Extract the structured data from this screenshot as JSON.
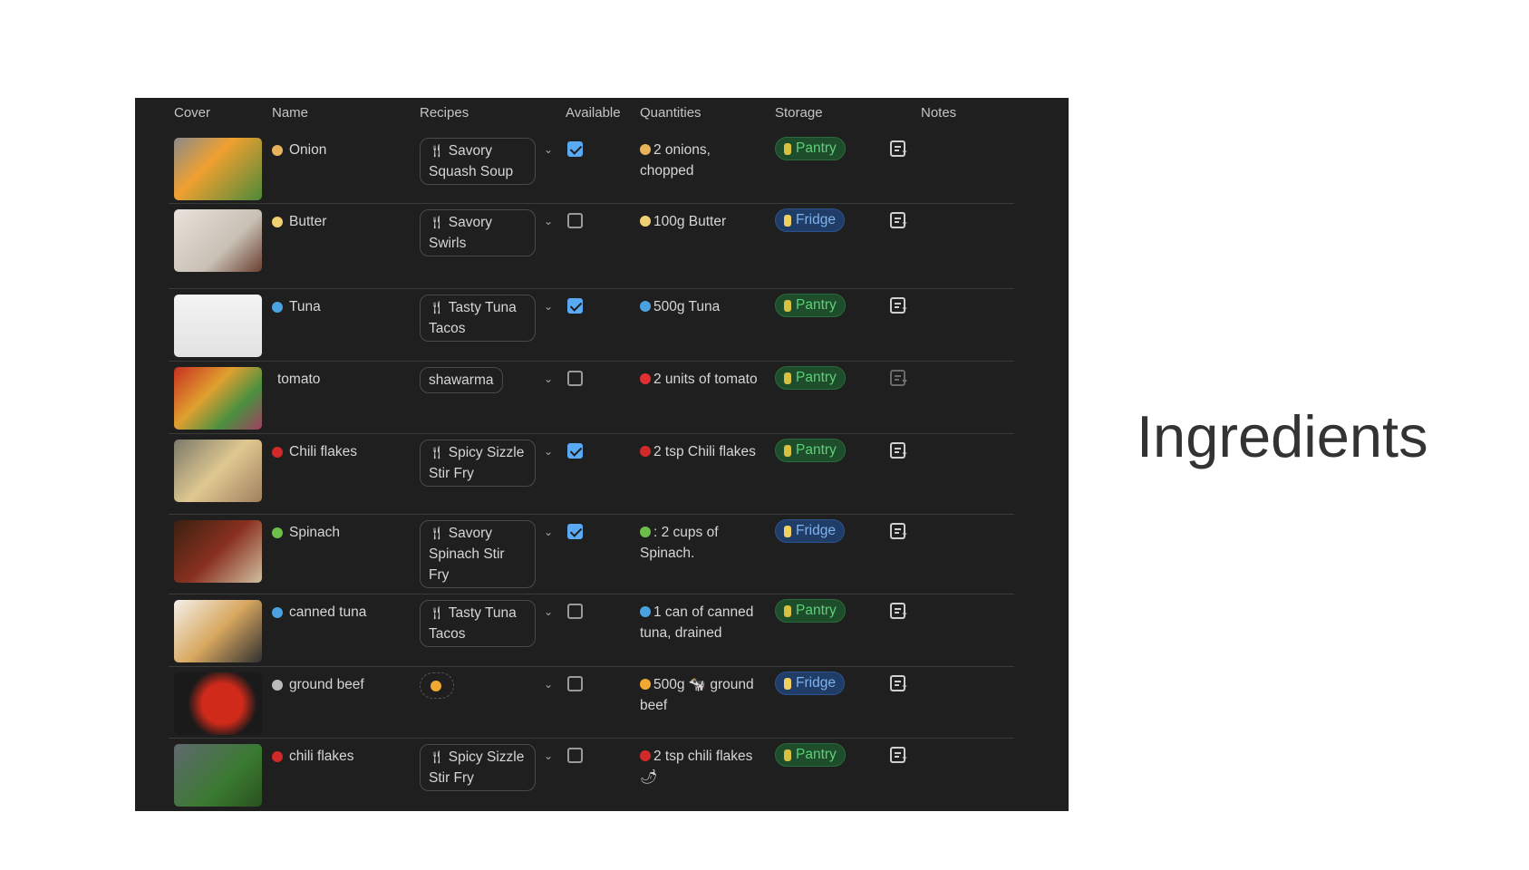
{
  "title": "Ingredients",
  "columns": [
    "Cover",
    "Name",
    "Recipes",
    "Available",
    "Quantities",
    "Storage",
    "Notes"
  ],
  "colors": {
    "panel": "#1f1f1f",
    "pantry": "#5fd07a",
    "fridge": "#7fb3f0",
    "checkbox": "#5aa9f5"
  },
  "rows": [
    {
      "name": "Onion",
      "name_icon": "onion-icon",
      "recipe": "Savory Squash Soup",
      "available": true,
      "quantity": "2 onions, chopped",
      "qty_icon": "onion-icon",
      "storage": "Pantry",
      "storage_icon": "can-icon",
      "thumb": "vegetables-photo"
    },
    {
      "name": "Butter",
      "name_icon": "butter-icon",
      "recipe": "Savory Swirls",
      "available": false,
      "quantity": "100g Butter",
      "qty_icon": "butter-icon",
      "storage": "Fridge",
      "storage_icon": "ice-cream-icon",
      "thumb": "dessert-photo"
    },
    {
      "name": "Tuna",
      "name_icon": "fish-icon",
      "recipe": "Tasty Tuna Tacos",
      "available": true,
      "quantity": "500g Tuna",
      "qty_icon": "fish-icon",
      "storage": "Pantry",
      "storage_icon": "can-icon",
      "thumb": "pineapple-photo"
    },
    {
      "name": "tomato",
      "name_icon": "",
      "recipe": "shawarma",
      "recipe_plain": true,
      "available": false,
      "quantity": "2 units of tomato",
      "qty_icon": "tomato-icon",
      "storage": "Pantry",
      "storage_icon": "can-icon",
      "thumb": "produce-photo",
      "note_dim": true
    },
    {
      "name": "Chili flakes",
      "name_icon": "chili-icon",
      "recipe": "Spicy Sizzle Stir Fry",
      "available": true,
      "quantity": "2 tsp Chili flakes",
      "qty_icon": "chili-icon",
      "storage": "Pantry",
      "storage_icon": "can-icon",
      "thumb": "spices-photo"
    },
    {
      "name": "Spinach",
      "name_icon": "herb-icon",
      "recipe": "Savory Spinach Stir Fry",
      "available": true,
      "quantity": ": 2 cups of Spinach.",
      "qty_icon": "herb-icon",
      "storage": "Fridge",
      "storage_icon": "ice-cream-icon",
      "thumb": "bowl-photo"
    },
    {
      "name": "canned tuna",
      "name_icon": "fish-icon",
      "recipe": "Tasty Tuna Tacos",
      "available": false,
      "quantity": "1 can of canned tuna, drained",
      "qty_icon": "fish-icon",
      "storage": "Pantry",
      "storage_icon": "can-icon",
      "thumb": "cookies-photo"
    },
    {
      "name": "ground beef",
      "name_icon": "cow-icon",
      "recipe": "",
      "recipe_icon": "taco-icon",
      "available": false,
      "quantity": "500g 🐄 ground beef",
      "qty_icon": "taco-icon",
      "storage": "Fridge",
      "storage_icon": "ice-cream-icon",
      "thumb": "tomato-photo"
    },
    {
      "name": "chili flakes",
      "name_icon": "chili-icon",
      "recipe": "Spicy Sizzle Stir Fry",
      "available": false,
      "quantity": "2 tsp chili flakes 🌶",
      "qty_icon": "chili-icon",
      "storage": "Pantry",
      "storage_icon": "can-icon",
      "thumb": "spinach-photo"
    }
  ]
}
